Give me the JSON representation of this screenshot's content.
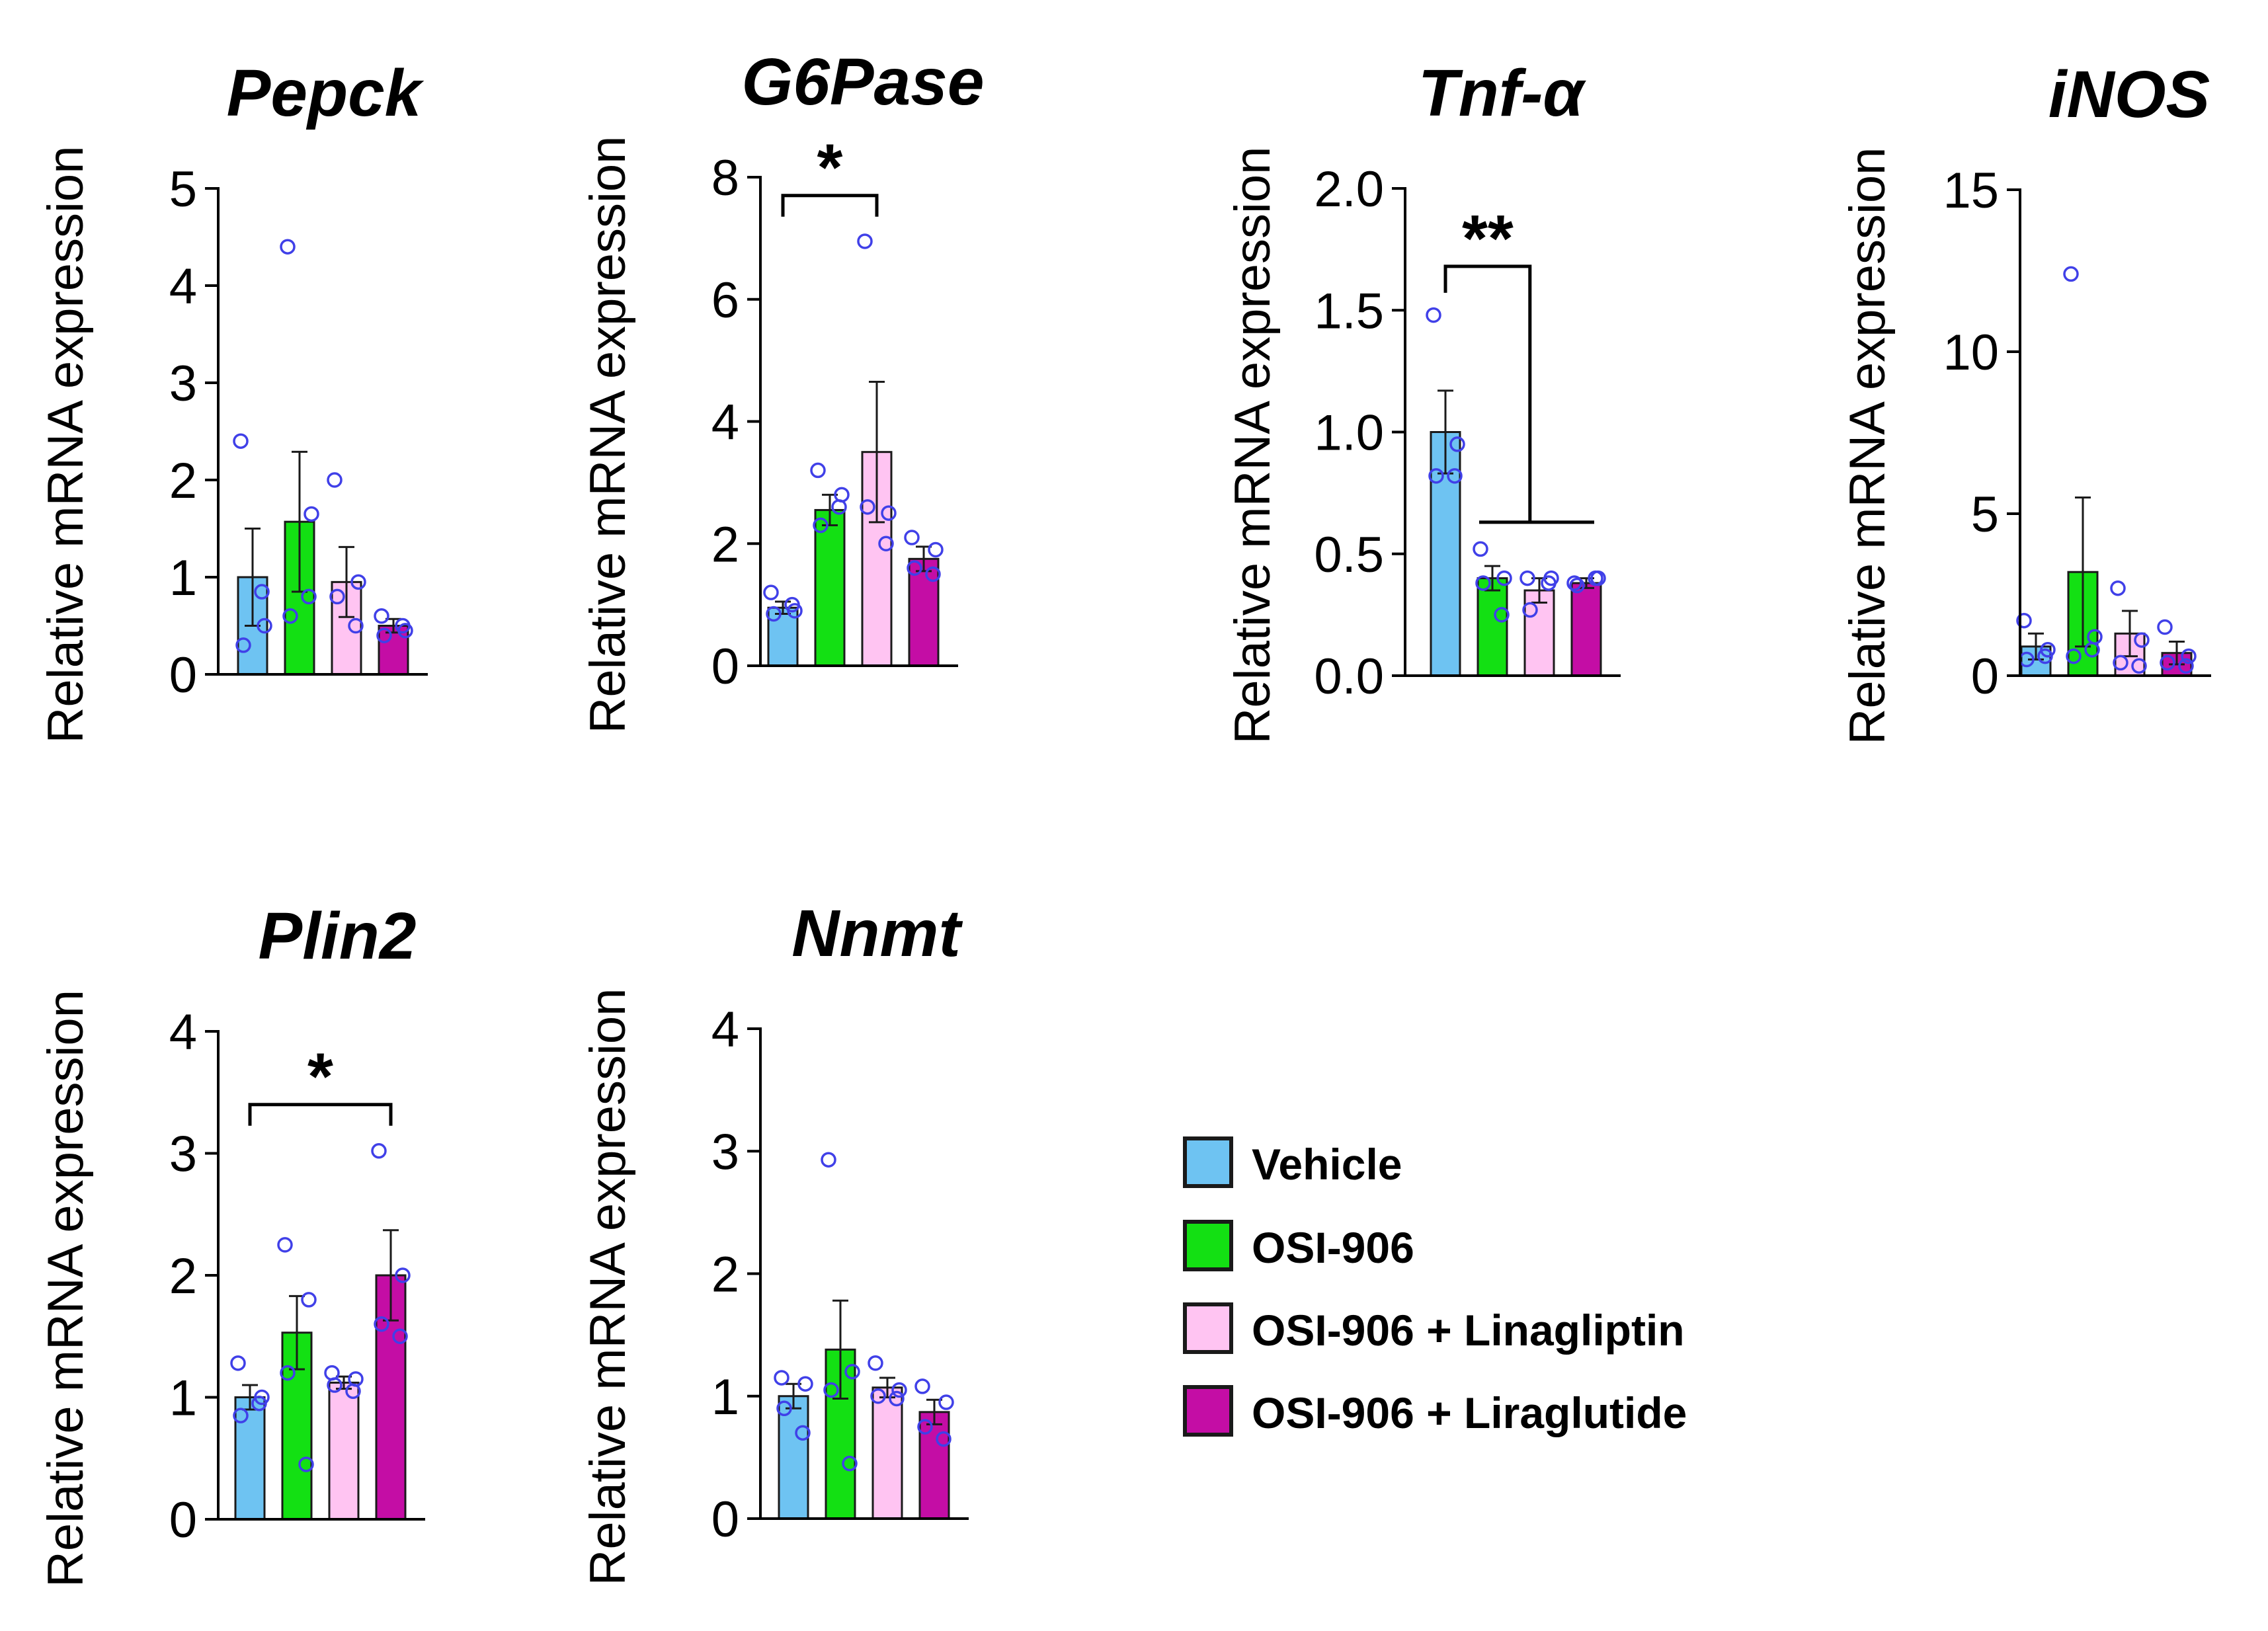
{
  "colors": {
    "series": [
      "#6EC3F2",
      "#13E013",
      "#FFC4F2",
      "#C40DA5"
    ],
    "edge": "#1a1a1a",
    "point": "#4040E8"
  },
  "legend_entries": [
    "Vehicle",
    "OSI-906",
    "OSI-906 + Linagliptin",
    "OSI-906 + Liraglutide"
  ],
  "chart_data": [
    {
      "type": "bar",
      "title": "Pepck",
      "ylabel": "Relative mRNA  expression",
      "ylim": [
        0,
        5
      ],
      "yticks": [
        0,
        1,
        2,
        3,
        4,
        5
      ],
      "ytick_labels": [
        "0",
        "1",
        "2",
        "3",
        "4",
        "5"
      ],
      "categories": [
        "Vehicle",
        "OSI-906",
        "OSI-906 + Linagliptin",
        "OSI-906 + Liraglutide"
      ],
      "values": [
        1.0,
        1.57,
        0.95,
        0.5
      ],
      "errors": [
        0.5,
        0.72,
        0.36,
        0.07
      ],
      "points": [
        [
          2.4,
          0.5,
          0.3,
          0.85
        ],
        [
          4.4,
          1.65,
          0.6,
          0.8
        ],
        [
          2.0,
          0.95,
          0.8,
          0.5
        ],
        [
          0.6,
          0.45,
          0.4,
          0.5
        ]
      ],
      "significance": []
    },
    {
      "type": "bar",
      "title": "G6Pase",
      "ylabel": "Relative mRNA  expression",
      "ylim": [
        0,
        8
      ],
      "yticks": [
        0,
        2,
        4,
        6,
        8
      ],
      "ytick_labels": [
        "0",
        "2",
        "4",
        "6",
        "8"
      ],
      "categories": [
        "Vehicle",
        "OSI-906",
        "OSI-906 + Linagliptin",
        "OSI-906 + Liraglutide"
      ],
      "values": [
        0.95,
        2.55,
        3.5,
        1.75
      ],
      "errors": [
        0.1,
        0.25,
        1.15,
        0.2
      ],
      "points": [
        [
          1.2,
          0.9,
          0.85,
          1.0
        ],
        [
          3.2,
          2.8,
          2.3,
          2.6
        ],
        [
          6.95,
          2.5,
          2.6,
          2.0
        ],
        [
          2.1,
          1.9,
          1.6,
          1.5
        ]
      ],
      "significance": [
        {
          "label": "*",
          "from": 0,
          "to": 2,
          "level": 7.7,
          "type": "simple"
        }
      ]
    },
    {
      "type": "bar",
      "title": "Tnf-α",
      "ylabel": "Relative mRNA  expression",
      "ylim": [
        0,
        2
      ],
      "yticks": [
        0,
        0.5,
        1,
        1.5,
        2
      ],
      "ytick_labels": [
        "0.0",
        "0.5",
        "1.0",
        "1.5",
        "2.0"
      ],
      "categories": [
        "Vehicle",
        "OSI-906",
        "OSI-906 + Linagliptin",
        "OSI-906 + Liraglutide"
      ],
      "values": [
        1.0,
        0.4,
        0.35,
        0.38
      ],
      "errors": [
        0.17,
        0.05,
        0.05,
        0.02
      ],
      "points": [
        [
          1.48,
          0.95,
          0.82,
          0.82
        ],
        [
          0.52,
          0.4,
          0.38,
          0.25
        ],
        [
          0.4,
          0.4,
          0.27,
          0.38
        ],
        [
          0.38,
          0.4,
          0.37,
          0.4
        ]
      ],
      "significance": [
        {
          "label": "**",
          "from": 0,
          "to": 3,
          "level": 1.68,
          "low": 0.63,
          "type": "group"
        }
      ]
    },
    {
      "type": "bar",
      "title": "iNOS",
      "ylabel": "Relative mRNA  expression",
      "ylim": [
        0,
        15
      ],
      "yticks": [
        0,
        5,
        10,
        15
      ],
      "ytick_labels": [
        "0",
        "5",
        "10",
        "15"
      ],
      "categories": [
        "Vehicle",
        "OSI-906",
        "OSI-906 + Linagliptin",
        "OSI-906 + Liraglutide"
      ],
      "values": [
        0.9,
        3.2,
        1.3,
        0.7
      ],
      "errors": [
        0.4,
        2.3,
        0.7,
        0.35
      ],
      "points": [
        [
          1.7,
          0.8,
          0.5,
          0.6
        ],
        [
          12.4,
          1.2,
          0.6,
          0.8
        ],
        [
          2.7,
          1.1,
          0.4,
          0.3
        ],
        [
          1.5,
          0.6,
          0.4,
          0.3
        ]
      ],
      "significance": []
    },
    {
      "type": "bar",
      "title": "Plin2",
      "ylabel": "Relative mRNA  expression",
      "ylim": [
        0,
        4
      ],
      "yticks": [
        0,
        1,
        2,
        3,
        4
      ],
      "ytick_labels": [
        "0",
        "1",
        "2",
        "3",
        "4"
      ],
      "categories": [
        "Vehicle",
        "OSI-906",
        "OSI-906 + Linagliptin",
        "OSI-906 + Liraglutide"
      ],
      "values": [
        1.0,
        1.53,
        1.12,
        2.0
      ],
      "errors": [
        0.1,
        0.3,
        0.05,
        0.37
      ],
      "points": [
        [
          1.28,
          1.0,
          0.85,
          0.95
        ],
        [
          2.25,
          1.8,
          1.2,
          0.45
        ],
        [
          1.2,
          1.15,
          1.1,
          1.05
        ],
        [
          3.02,
          2.0,
          1.6,
          1.5
        ]
      ],
      "significance": [
        {
          "label": "*",
          "from": 0,
          "to": 3,
          "level": 3.4,
          "type": "simple"
        }
      ]
    },
    {
      "type": "bar",
      "title": "Nnmt",
      "ylabel": "Relative mRNA  expression",
      "ylim": [
        0,
        4
      ],
      "yticks": [
        0,
        1,
        2,
        3,
        4
      ],
      "ytick_labels": [
        "0",
        "1",
        "2",
        "3",
        "4"
      ],
      "categories": [
        "Vehicle",
        "OSI-906",
        "OSI-906 + Linagliptin",
        "OSI-906 + Liraglutide"
      ],
      "values": [
        1.0,
        1.38,
        1.07,
        0.87
      ],
      "errors": [
        0.1,
        0.4,
        0.08,
        0.1
      ],
      "points": [
        [
          1.15,
          1.1,
          0.9,
          0.7
        ],
        [
          2.93,
          1.2,
          1.05,
          0.45
        ],
        [
          1.27,
          1.05,
          1.0,
          0.98
        ],
        [
          1.08,
          0.95,
          0.75,
          0.65
        ]
      ],
      "significance": []
    }
  ]
}
